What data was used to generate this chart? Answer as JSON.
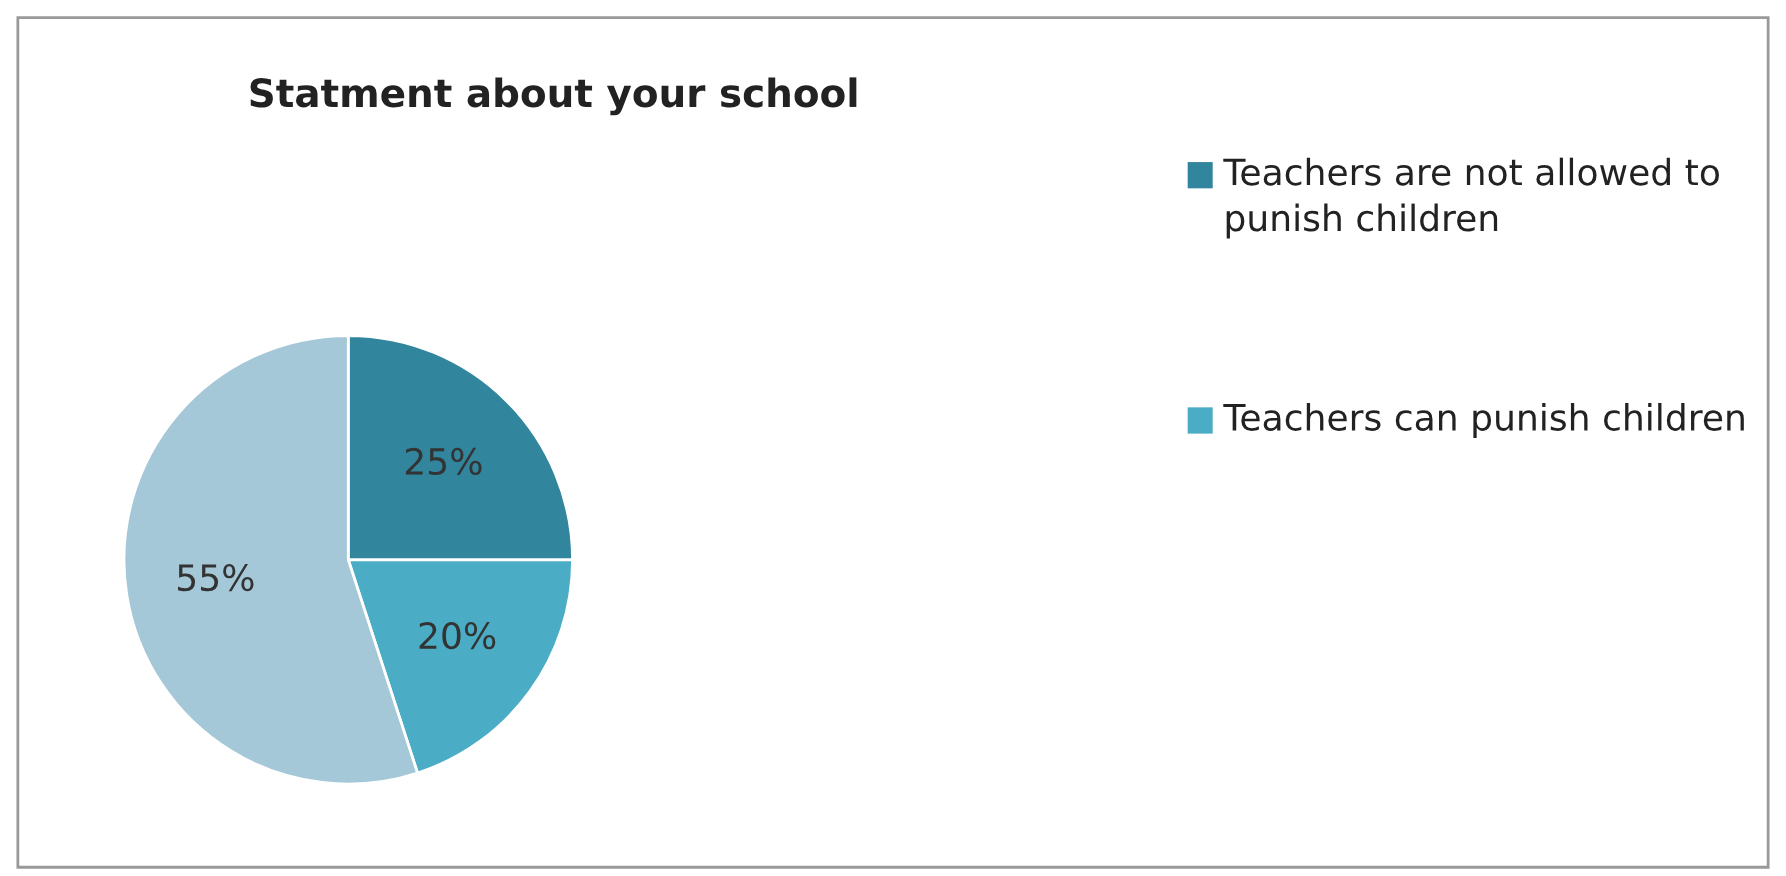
{
  "chart_data": {
    "type": "pie",
    "title": "Statment about your school",
    "categories": [
      "Teachers are not allowed to punish children",
      "Teachers can punish children",
      null
    ],
    "values": [
      25,
      20,
      55
    ],
    "colors": [
      "#31859c",
      "#4bacc6",
      "#a5c8d8"
    ],
    "value_labels": [
      "25%",
      "20%",
      "55%"
    ],
    "legend": "right"
  }
}
